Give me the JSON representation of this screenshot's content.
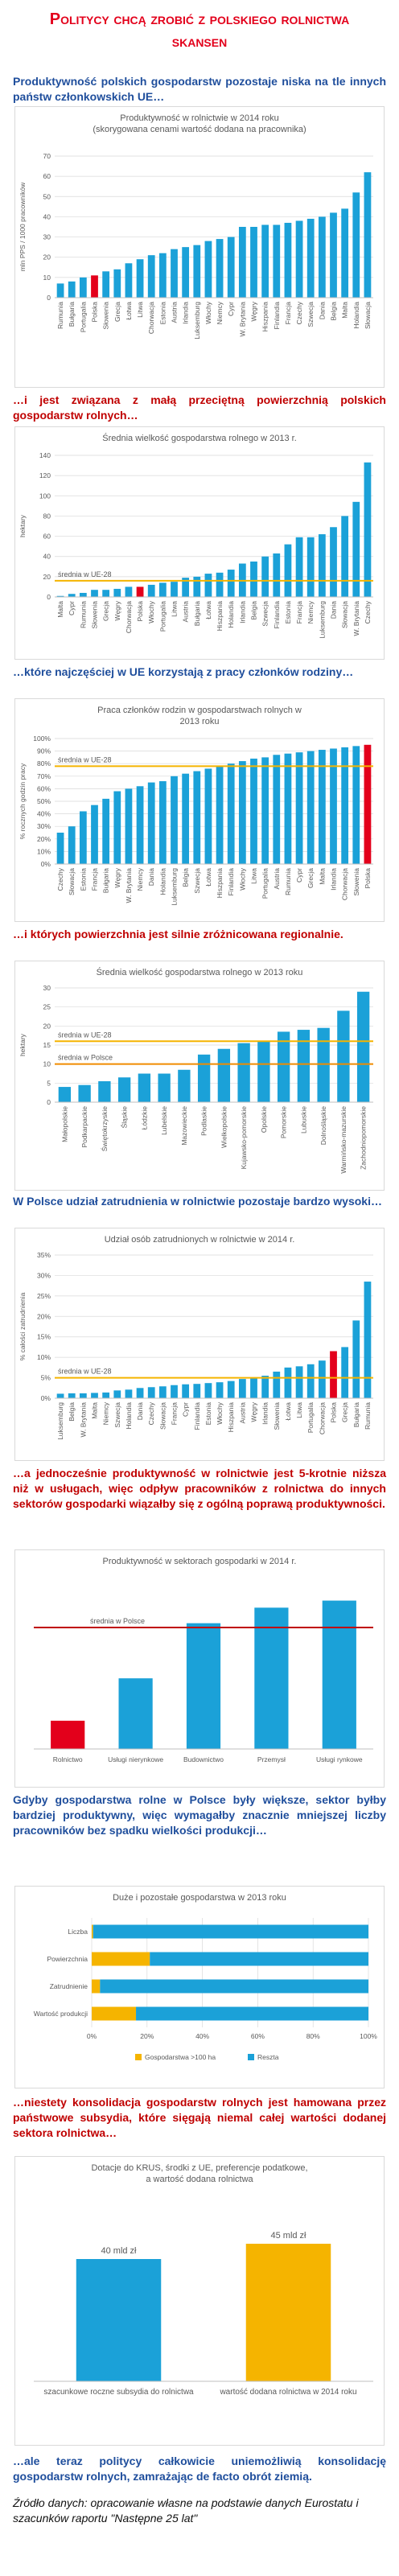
{
  "title": "Politycy chcą zrobić z polskiego rolnictwa skansen",
  "paragraphs": [
    "Produktywność polskich gospodarstw pozostaje niska na tle innych państw członkowskich UE…",
    "…i jest związana z małą przeciętną powierzchnią polskich gospodarstw rolnych…",
    "…które najczęściej w UE korzystają z pracy członków rodziny…",
    "…i których powierzchnia jest silnie zróżnicowana regionalnie.",
    "W Polsce udział zatrudnienia w rolnictwie pozostaje bardzo wysoki…",
    "…a jednocześnie produktywność w rolnictwie jest 5-krotnie niższa niż w usługach, więc odpływ pracowników z rolnictwa do innych sektorów gospodarki wiązałby się z ogólną poprawą produktywności.",
    "Gdyby gospodarstwa rolne w Polsce były większe, sektor byłby bardziej produktywny, więc wymagałby znacznie mniejszej liczby pracowników bez spadku wielkości produkcji…",
    "…niestety konsolidacja gospodarstw rolnych jest hamowana przez państwowe subsydia, które sięgają niemal całej wartości dodanej sektora rolnictwa…",
    "…ale teraz politycy całkowicie uniemożliwią konsolidację gospodarstw rolnych, zamrażając de facto obrót ziemią."
  ],
  "source": "Źródło danych: opracowanie własne na podstawie danych Eurostatu i szacunków raportu \"Następne 25 lat\"",
  "chart_data": [
    {
      "type": "bar",
      "title": [
        "Produktywność w rolnictwie w 2014 roku",
        "(skorygowana cenami wartość dodana na pracownika)"
      ],
      "ylabel": "mln PPS / 1000 pracowników",
      "categories": [
        "Rumunia",
        "Bułgaria",
        "Portugalia",
        "Polska",
        "Słowenia",
        "Grecja",
        "Łotwa",
        "Litwa",
        "Chorwacja",
        "Estonia",
        "Austria",
        "Irlandia",
        "Luksemburg",
        "Włochy",
        "Niemcy",
        "Cypr",
        "W. Brytania",
        "Węgry",
        "Hiszpania",
        "Finlandia",
        "Francja",
        "Czechy",
        "Szwecja",
        "Dania",
        "Belgia",
        "Malta",
        "Holandia",
        "Słowacja"
      ],
      "values": [
        7,
        8,
        10,
        11,
        13,
        14,
        17,
        19,
        21,
        22,
        24,
        25,
        26,
        28,
        29,
        30,
        35,
        35,
        36,
        36,
        37,
        38,
        39,
        40,
        42,
        44,
        52,
        62
      ],
      "colors": [
        "#1ba1d8",
        "#1ba1d8",
        "#1ba1d8",
        "#e3001b",
        "#1ba1d8",
        "#1ba1d8",
        "#1ba1d8",
        "#1ba1d8",
        "#1ba1d8",
        "#1ba1d8",
        "#1ba1d8",
        "#1ba1d8",
        "#1ba1d8",
        "#1ba1d8",
        "#1ba1d8",
        "#1ba1d8",
        "#1ba1d8",
        "#1ba1d8",
        "#1ba1d8",
        "#1ba1d8",
        "#1ba1d8",
        "#1ba1d8",
        "#1ba1d8",
        "#1ba1d8",
        "#1ba1d8",
        "#1ba1d8",
        "#1ba1d8",
        "#1ba1d8"
      ],
      "ylim": [
        0,
        70
      ],
      "yticks": [
        0,
        10,
        20,
        30,
        40,
        50,
        60,
        70
      ],
      "grid": true
    },
    {
      "type": "bar",
      "title": [
        "Średnia wielkość gospodarstwa rolnego w 2013 r."
      ],
      "ylabel": "hektary",
      "categories": [
        "Malta",
        "Cypr",
        "Rumunia",
        "Słowenia",
        "Grecja",
        "Węgry",
        "Chorwacja",
        "Polska",
        "Włochy",
        "Portugalia",
        "Litwa",
        "Austria",
        "Bułgaria",
        "Łotwa",
        "Hiszpania",
        "Holandia",
        "Irlandia",
        "Belgia",
        "Szwecja",
        "Finlandia",
        "Estonia",
        "Francja",
        "Niemcy",
        "Luksemburg",
        "Dania",
        "Słowacja",
        "W. Brytania",
        "Czechy"
      ],
      "values": [
        1,
        3,
        4,
        7,
        7,
        8,
        10,
        10,
        12,
        14,
        15,
        19,
        20,
        23,
        24,
        27,
        33,
        35,
        40,
        43,
        52,
        59,
        59,
        62,
        69,
        80,
        94,
        133
      ],
      "colors": [
        "#1ba1d8",
        "#1ba1d8",
        "#1ba1d8",
        "#1ba1d8",
        "#1ba1d8",
        "#1ba1d8",
        "#1ba1d8",
        "#e3001b",
        "#1ba1d8",
        "#1ba1d8",
        "#1ba1d8",
        "#1ba1d8",
        "#1ba1d8",
        "#1ba1d8",
        "#1ba1d8",
        "#1ba1d8",
        "#1ba1d8",
        "#1ba1d8",
        "#1ba1d8",
        "#1ba1d8",
        "#1ba1d8",
        "#1ba1d8",
        "#1ba1d8",
        "#1ba1d8",
        "#1ba1d8",
        "#1ba1d8",
        "#1ba1d8",
        "#1ba1d8"
      ],
      "reference_lines": [
        {
          "label": "średnia w UE-28",
          "value": 16,
          "color": "#f5b400"
        }
      ],
      "ylim": [
        0,
        140
      ],
      "yticks": [
        0,
        20,
        40,
        60,
        80,
        100,
        120,
        140
      ],
      "grid": true
    },
    {
      "type": "bar",
      "title": [
        "Praca członków rodzin w gospodarstwach rolnych w",
        "2013 roku"
      ],
      "ylabel": "% rocznych godzin pracy",
      "categories": [
        "Czechy",
        "Słowacja",
        "Estonia",
        "Francja",
        "Bułgaria",
        "Węgry",
        "W. Brytania",
        "Niemcy",
        "Dania",
        "Holandia",
        "Luksemburg",
        "Belgia",
        "Szwecja",
        "Łotwa",
        "Hiszpania",
        "Finlandia",
        "Włochy",
        "Litwa",
        "Portugalia",
        "Austria",
        "Rumunia",
        "Cypr",
        "Grecja",
        "Malta",
        "Irlandia",
        "Chorwacja",
        "Słowenia",
        "Polska"
      ],
      "values": [
        25,
        30,
        42,
        47,
        52,
        58,
        60,
        62,
        65,
        66,
        70,
        72,
        74,
        76,
        78,
        80,
        82,
        84,
        85,
        87,
        88,
        89,
        90,
        91,
        92,
        93,
        94,
        95
      ],
      "colors": [
        "#1ba1d8",
        "#1ba1d8",
        "#1ba1d8",
        "#1ba1d8",
        "#1ba1d8",
        "#1ba1d8",
        "#1ba1d8",
        "#1ba1d8",
        "#1ba1d8",
        "#1ba1d8",
        "#1ba1d8",
        "#1ba1d8",
        "#1ba1d8",
        "#1ba1d8",
        "#1ba1d8",
        "#1ba1d8",
        "#1ba1d8",
        "#1ba1d8",
        "#1ba1d8",
        "#1ba1d8",
        "#1ba1d8",
        "#1ba1d8",
        "#1ba1d8",
        "#1ba1d8",
        "#1ba1d8",
        "#1ba1d8",
        "#1ba1d8",
        "#e3001b"
      ],
      "reference_lines": [
        {
          "label": "średnia w UE-28",
          "value": 78,
          "color": "#f5b400"
        }
      ],
      "ylim": [
        0,
        100
      ],
      "yticks": [
        {
          "value": 0,
          "label": "0%"
        },
        {
          "value": 10,
          "label": "10%"
        },
        {
          "value": 20,
          "label": "20%"
        },
        {
          "value": 30,
          "label": "30%"
        },
        {
          "value": 40,
          "label": "40%"
        },
        {
          "value": 50,
          "label": "50%"
        },
        {
          "value": 60,
          "label": "60%"
        },
        {
          "value": 70,
          "label": "70%"
        },
        {
          "value": 80,
          "label": "80%"
        },
        {
          "value": 90,
          "label": "90%"
        },
        {
          "value": 100,
          "label": "100%"
        }
      ],
      "grid": true
    },
    {
      "type": "bar",
      "title": [
        "Średnia wielkość gospodarstwa rolnego w 2013 roku"
      ],
      "ylabel": "hektary",
      "categories": [
        "Małopolskie",
        "Podkarpackie",
        "Świętokrzyskie",
        "Śląskie",
        "Łódzkie",
        "Lubelskie",
        "Mazowieckie",
        "Podlaskie",
        "Wielkopolskie",
        "Kujawsko-pomorskie",
        "Opolskie",
        "Pomorskie",
        "Lubuskie",
        "Dolnośląskie",
        "Warmińsko-mazurskie",
        "Zachodniopomorskie"
      ],
      "values": [
        4,
        4.5,
        5.5,
        6.5,
        7.5,
        7.5,
        8.5,
        12.5,
        14,
        15.5,
        16,
        18.5,
        19,
        19.5,
        24,
        29
      ],
      "color": "#1ba1d8",
      "reference_lines": [
        {
          "label": "średnia w UE-28",
          "value": 16,
          "color": "#f5b400"
        },
        {
          "label": "średnia w Polsce",
          "value": 10,
          "color": "#f08c00"
        }
      ],
      "ylim": [
        0,
        30
      ],
      "yticks": [
        0,
        5,
        10,
        15,
        20,
        25,
        30
      ],
      "grid": true
    },
    {
      "type": "bar",
      "title": [
        "Udział osób zatrudnionych w rolnictwie w 2014 r."
      ],
      "ylabel": "% całości zatrudnienia",
      "categories": [
        "Luksemburg",
        "Belgia",
        "W. Brytania",
        "Malta",
        "Niemcy",
        "Szwecja",
        "Holandia",
        "Dania",
        "Czechy",
        "Słowacja",
        "Francja",
        "Cypr",
        "Finlandia",
        "Estonia",
        "Włochy",
        "Hiszpania",
        "Austria",
        "Węgry",
        "Irlandia",
        "Słowenia",
        "Łotwa",
        "Litwa",
        "Portugalia",
        "Chorwacja",
        "Polska",
        "Grecja",
        "Bułgaria",
        "Rumunia"
      ],
      "values": [
        1.1,
        1.2,
        1.2,
        1.3,
        1.4,
        1.9,
        2.1,
        2.5,
        2.7,
        2.9,
        3.2,
        3.4,
        3.5,
        3.7,
        3.9,
        4.2,
        4.7,
        4.9,
        5.5,
        6.5,
        7.5,
        7.8,
        8.3,
        9.2,
        11.5,
        12.5,
        19,
        28.5
      ],
      "colors": [
        "#1ba1d8",
        "#1ba1d8",
        "#1ba1d8",
        "#1ba1d8",
        "#1ba1d8",
        "#1ba1d8",
        "#1ba1d8",
        "#1ba1d8",
        "#1ba1d8",
        "#1ba1d8",
        "#1ba1d8",
        "#1ba1d8",
        "#1ba1d8",
        "#1ba1d8",
        "#1ba1d8",
        "#1ba1d8",
        "#1ba1d8",
        "#1ba1d8",
        "#1ba1d8",
        "#1ba1d8",
        "#1ba1d8",
        "#1ba1d8",
        "#1ba1d8",
        "#1ba1d8",
        "#e3001b",
        "#1ba1d8",
        "#1ba1d8",
        "#1ba1d8"
      ],
      "reference_lines": [
        {
          "label": "średnia w UE-28",
          "value": 5,
          "color": "#f5b400"
        }
      ],
      "ylim": [
        0,
        35
      ],
      "yticks": [
        {
          "value": 0,
          "label": "0%"
        },
        {
          "value": 5,
          "label": "5%"
        },
        {
          "value": 10,
          "label": "10%"
        },
        {
          "value": 15,
          "label": "15%"
        },
        {
          "value": 20,
          "label": "20%"
        },
        {
          "value": 25,
          "label": "25%"
        },
        {
          "value": 30,
          "label": "30%"
        },
        {
          "value": 35,
          "label": "35%"
        }
      ],
      "grid": true
    },
    {
      "type": "bar",
      "title": [
        "Produktywność w sektorach gospodarki w 2014 r."
      ],
      "categories": [
        "Rolnictwo",
        "Usługi nierynkowe",
        "Budownictwo",
        "Przemysł",
        "Usługi rynkowe"
      ],
      "values": [
        20,
        50,
        89,
        100,
        105
      ],
      "colors": [
        "#e3001b",
        "#1ba1d8",
        "#1ba1d8",
        "#1ba1d8",
        "#1ba1d8"
      ],
      "reference_lines": [
        {
          "label": "średnia w Polsce",
          "value": 86,
          "color": "#c00000"
        }
      ],
      "ylim": [
        0,
        115
      ],
      "grid": false
    },
    {
      "type": "stacked_barh",
      "title": [
        "Duże i pozostałe gospodarstwa w 2013 roku"
      ],
      "categories": [
        "Liczba",
        "Powierzchnia",
        "Zatrudnienie",
        "Wartość produkcji"
      ],
      "series": [
        {
          "name": "Gospodarstwa >100 ha",
          "color": "#f5b400",
          "values": [
            0.5,
            21,
            3,
            16
          ]
        },
        {
          "name": "Reszta",
          "color": "#1ba1d8",
          "values": [
            99.5,
            79,
            97,
            84
          ]
        }
      ],
      "xlim": [
        0,
        100
      ],
      "xticks": [
        {
          "value": 0,
          "label": "0%"
        },
        {
          "value": 20,
          "label": "20%"
        },
        {
          "value": 40,
          "label": "40%"
        },
        {
          "value": 60,
          "label": "60%"
        },
        {
          "value": 80,
          "label": "80%"
        },
        {
          "value": 100,
          "label": "100%"
        }
      ],
      "grid": true,
      "legend": "bottom"
    },
    {
      "type": "bar",
      "title": [
        "Dotacje do KRUS, środki z UE, preferencje podatkowe,",
        "a wartość dodana rolnictwa"
      ],
      "categories": [
        "szacunkowe roczne subsydia do rolnictwa",
        "wartość dodana rolnictwa w 2014 roku"
      ],
      "values": [
        40,
        45
      ],
      "value_labels": [
        "40 mld zł",
        "45 mld zł"
      ],
      "colors": [
        "#1ba1d8",
        "#f5b400"
      ],
      "ylim": [
        0,
        50
      ],
      "grid": false
    }
  ]
}
